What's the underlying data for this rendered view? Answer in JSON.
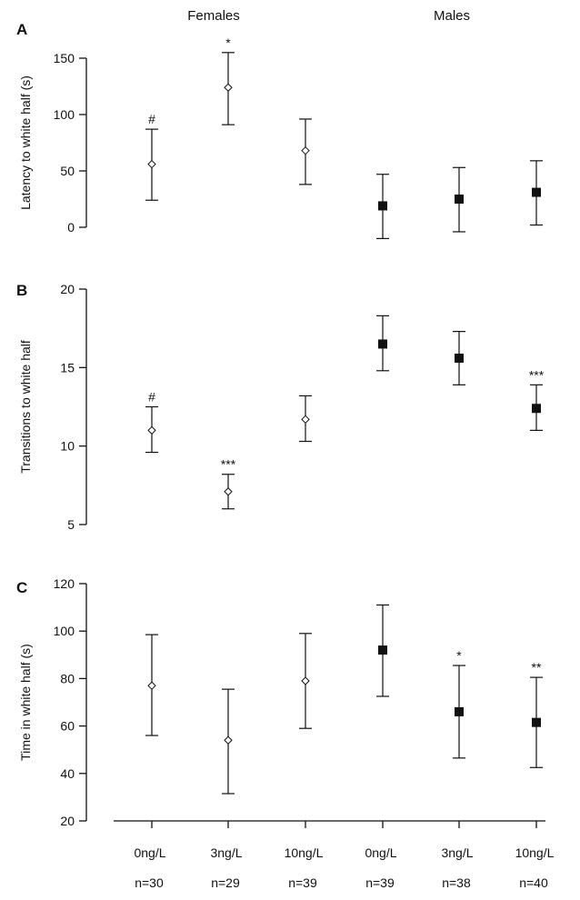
{
  "figure": {
    "group_labels": [
      "Females",
      "Males"
    ]
  },
  "chart_data": [
    {
      "panel": "A",
      "type": "scatter",
      "ylabel": "Latency to white half (s)",
      "ylim": [
        0,
        150
      ],
      "yticks": [
        0,
        50,
        100,
        150
      ],
      "categories": [
        "0ng/L",
        "3ng/L",
        "10ng/L",
        "0ng/L",
        "3ng/L",
        "10ng/L"
      ],
      "points": [
        {
          "group": "Females",
          "mean": 56,
          "low": 24,
          "high": 87,
          "marker": "open-diamond",
          "annotation": "#"
        },
        {
          "group": "Females",
          "mean": 124,
          "low": 91,
          "high": 155,
          "marker": "open-diamond",
          "annotation": "*"
        },
        {
          "group": "Females",
          "mean": 68,
          "low": 38,
          "high": 96,
          "marker": "open-diamond",
          "annotation": ""
        },
        {
          "group": "Males",
          "mean": 19,
          "low": -10,
          "high": 47,
          "marker": "filled-square",
          "annotation": ""
        },
        {
          "group": "Males",
          "mean": 25,
          "low": -4,
          "high": 53,
          "marker": "filled-square",
          "annotation": ""
        },
        {
          "group": "Males",
          "mean": 31,
          "low": 2,
          "high": 59,
          "marker": "filled-square",
          "annotation": ""
        }
      ]
    },
    {
      "panel": "B",
      "type": "scatter",
      "ylabel": "Transitions to white half",
      "ylim": [
        5,
        20
      ],
      "yticks": [
        5,
        10,
        15,
        20
      ],
      "categories": [
        "0ng/L",
        "3ng/L",
        "10ng/L",
        "0ng/L",
        "3ng/L",
        "10ng/L"
      ],
      "points": [
        {
          "group": "Females",
          "mean": 11.0,
          "low": 9.6,
          "high": 12.5,
          "marker": "open-diamond",
          "annotation": "#"
        },
        {
          "group": "Females",
          "mean": 7.1,
          "low": 6.0,
          "high": 8.2,
          "marker": "open-diamond",
          "annotation": "***"
        },
        {
          "group": "Females",
          "mean": 11.7,
          "low": 10.3,
          "high": 13.2,
          "marker": "open-diamond",
          "annotation": ""
        },
        {
          "group": "Males",
          "mean": 16.5,
          "low": 14.8,
          "high": 18.3,
          "marker": "filled-square",
          "annotation": ""
        },
        {
          "group": "Males",
          "mean": 15.6,
          "low": 13.9,
          "high": 17.3,
          "marker": "filled-square",
          "annotation": ""
        },
        {
          "group": "Males",
          "mean": 12.4,
          "low": 11.0,
          "high": 13.9,
          "marker": "filled-square",
          "annotation": "***"
        }
      ]
    },
    {
      "panel": "C",
      "type": "scatter",
      "ylabel": "Time in white half (s)",
      "ylim": [
        20,
        120
      ],
      "yticks": [
        20,
        40,
        60,
        80,
        100,
        120
      ],
      "categories": [
        "0ng/L",
        "3ng/L",
        "10ng/L",
        "0ng/L",
        "3ng/L",
        "10ng/L"
      ],
      "n_labels": [
        "n=30",
        "n=29",
        "n=39",
        "n=39",
        "n=38",
        "n=40"
      ],
      "points": [
        {
          "group": "Females",
          "mean": 77,
          "low": 56,
          "high": 98.5,
          "marker": "open-diamond",
          "annotation": ""
        },
        {
          "group": "Females",
          "mean": 54,
          "low": 31.5,
          "high": 75.5,
          "marker": "open-diamond",
          "annotation": ""
        },
        {
          "group": "Females",
          "mean": 79,
          "low": 59,
          "high": 99,
          "marker": "open-diamond",
          "annotation": ""
        },
        {
          "group": "Males",
          "mean": 92,
          "low": 72.5,
          "high": 111,
          "marker": "filled-square",
          "annotation": ""
        },
        {
          "group": "Males",
          "mean": 66,
          "low": 46.5,
          "high": 85.5,
          "marker": "filled-square",
          "annotation": "*"
        },
        {
          "group": "Males",
          "mean": 61.5,
          "low": 42.5,
          "high": 80.5,
          "marker": "filled-square",
          "annotation": "**"
        }
      ]
    }
  ]
}
